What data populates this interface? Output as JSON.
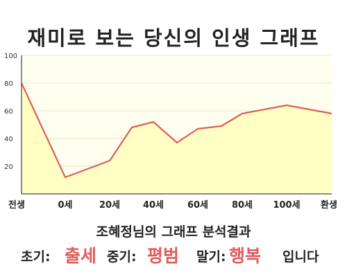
{
  "title": "재미로 보는 당신의 인생 그래프",
  "subtitle": "조혜정님의 그래프 분석결과",
  "result": {
    "early_label": "초기:",
    "early_value": "출세",
    "mid_label": "중기:",
    "mid_value": "평범",
    "late_label": "말기:",
    "late_value": "행복",
    "ending": "입니다"
  },
  "colors": {
    "line": "#e15b5b",
    "fill": "#ffffc4",
    "plot_bg": "#fffff0",
    "accent_text": "#e15b5b"
  },
  "chart_data": {
    "type": "area",
    "x_categories": [
      "전생",
      "0세",
      "20세",
      "40세",
      "60세",
      "80세",
      "100세",
      "환생"
    ],
    "points": [
      {
        "x": "전생",
        "y": 80
      },
      {
        "x": "0세",
        "y": 12
      },
      {
        "x": "20세",
        "y": 24
      },
      {
        "x": "30세",
        "y": 48
      },
      {
        "x": "40세",
        "y": 52
      },
      {
        "x": "50세",
        "y": 37
      },
      {
        "x": "60세",
        "y": 47
      },
      {
        "x": "70세",
        "y": 49
      },
      {
        "x": "80세",
        "y": 58
      },
      {
        "x": "100세",
        "y": 64
      },
      {
        "x": "환생",
        "y": 58
      }
    ],
    "x_tick_labels": [
      "전생",
      "0세",
      "20세",
      "40세",
      "60세",
      "80세",
      "100세",
      "환생"
    ],
    "y_ticks": [
      20,
      40,
      60,
      80,
      100
    ],
    "ylim": [
      0,
      100
    ],
    "grid": true
  }
}
